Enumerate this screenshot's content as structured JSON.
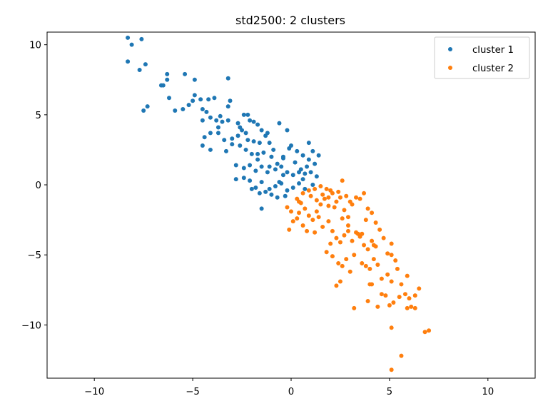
{
  "chart_data": {
    "type": "scatter",
    "title": "std2500: 2 clusters",
    "xlabel": "",
    "ylabel": "",
    "xlim": [
      -12.4,
      12.4
    ],
    "ylim": [
      -13.8,
      10.9
    ],
    "xticks": [
      -10,
      -5,
      0,
      5,
      10
    ],
    "yticks": [
      10,
      5,
      0,
      -5,
      -10
    ],
    "xtick_labels": [
      "−10",
      "−5",
      "0",
      "5",
      "10"
    ],
    "ytick_labels": [
      "10",
      "5",
      "0",
      "−5",
      "−10"
    ],
    "grid": false,
    "legend_position": "top-right",
    "series": [
      {
        "name": "cluster 1",
        "color": "#1f77b4",
        "points": [
          [
            -8.3,
            10.5
          ],
          [
            -8.1,
            10.0
          ],
          [
            -7.6,
            10.4
          ],
          [
            -8.3,
            8.8
          ],
          [
            -7.7,
            8.2
          ],
          [
            -7.4,
            8.6
          ],
          [
            -6.6,
            7.1
          ],
          [
            -6.3,
            7.5
          ],
          [
            -6.3,
            7.9
          ],
          [
            -5.4,
            7.9
          ],
          [
            -4.9,
            7.5
          ],
          [
            -3.2,
            7.6
          ],
          [
            -7.5,
            5.3
          ],
          [
            -7.3,
            5.6
          ],
          [
            -6.5,
            7.1
          ],
          [
            -6.2,
            6.2
          ],
          [
            -5.9,
            5.3
          ],
          [
            -5.5,
            5.4
          ],
          [
            -5.2,
            5.7
          ],
          [
            -5.0,
            6.0
          ],
          [
            -4.9,
            6.4
          ],
          [
            -4.6,
            6.1
          ],
          [
            -4.2,
            6.1
          ],
          [
            -3.9,
            6.2
          ],
          [
            -3.2,
            5.6
          ],
          [
            -3.1,
            6.0
          ],
          [
            -4.5,
            5.4
          ],
          [
            -4.3,
            5.2
          ],
          [
            -4.5,
            4.6
          ],
          [
            -4.1,
            4.8
          ],
          [
            -3.8,
            4.6
          ],
          [
            -3.6,
            4.9
          ],
          [
            -3.5,
            4.5
          ],
          [
            -3.2,
            4.6
          ],
          [
            -2.7,
            4.4
          ],
          [
            -2.4,
            5.0
          ],
          [
            -2.2,
            5.0
          ],
          [
            -1.9,
            4.5
          ],
          [
            -2.6,
            4.1
          ],
          [
            -2.1,
            4.6
          ],
          [
            -1.7,
            4.3
          ],
          [
            -1.5,
            3.9
          ],
          [
            -1.3,
            3.5
          ],
          [
            -1.1,
            3.0
          ],
          [
            -0.6,
            4.4
          ],
          [
            -0.2,
            3.9
          ],
          [
            -4.4,
            3.4
          ],
          [
            -4.1,
            3.7
          ],
          [
            -3.7,
            3.7
          ],
          [
            -3.4,
            3.2
          ],
          [
            -3.0,
            3.3
          ],
          [
            -2.7,
            3.5
          ],
          [
            -2.5,
            3.9
          ],
          [
            -2.2,
            3.2
          ],
          [
            -1.9,
            3.1
          ],
          [
            -1.6,
            3.0
          ],
          [
            -1.2,
            3.7
          ],
          [
            -0.9,
            2.5
          ],
          [
            -0.4,
            2.0
          ],
          [
            -0.1,
            2.6
          ],
          [
            0.0,
            2.8
          ],
          [
            0.6,
            2.1
          ],
          [
            0.9,
            1.8
          ],
          [
            1.1,
            2.4
          ],
          [
            1.4,
            2.1
          ],
          [
            0.9,
            3.0
          ],
          [
            -4.5,
            2.8
          ],
          [
            -4.1,
            2.5
          ],
          [
            -3.3,
            2.4
          ],
          [
            -3.0,
            2.9
          ],
          [
            -2.6,
            2.8
          ],
          [
            -2.3,
            2.5
          ],
          [
            -2.0,
            2.2
          ],
          [
            -1.7,
            1.8
          ],
          [
            -1.4,
            2.3
          ],
          [
            -1.1,
            1.3
          ],
          [
            -0.7,
            1.5
          ],
          [
            -0.4,
            1.9
          ],
          [
            0.2,
            1.6
          ],
          [
            0.5,
            1.1
          ],
          [
            0.8,
            1.3
          ],
          [
            1.2,
            1.5
          ],
          [
            -2.8,
            1.4
          ],
          [
            -2.4,
            1.2
          ],
          [
            -2.1,
            1.4
          ],
          [
            -1.8,
            1.0
          ],
          [
            -1.5,
            1.3
          ],
          [
            -1.2,
            0.9
          ],
          [
            -0.8,
            1.1
          ],
          [
            -0.5,
            1.3
          ],
          [
            -0.2,
            0.9
          ],
          [
            0.1,
            0.7
          ],
          [
            0.4,
            0.9
          ],
          [
            0.7,
            0.8
          ],
          [
            1.0,
            0.9
          ],
          [
            1.3,
            0.6
          ],
          [
            -2.8,
            0.4
          ],
          [
            -2.4,
            0.5
          ],
          [
            -2.1,
            0.3
          ],
          [
            -1.8,
            -0.2
          ],
          [
            -1.5,
            0.2
          ],
          [
            -1.1,
            -0.3
          ],
          [
            -0.8,
            -0.1
          ],
          [
            -0.5,
            0.1
          ],
          [
            -0.2,
            -0.4
          ],
          [
            0.1,
            -0.2
          ],
          [
            0.4,
            0.1
          ],
          [
            0.7,
            -0.3
          ],
          [
            1.1,
            0.0
          ],
          [
            -2.0,
            -0.3
          ],
          [
            -1.6,
            -0.6
          ],
          [
            -1.3,
            -0.5
          ],
          [
            -1.0,
            -0.7
          ],
          [
            -0.7,
            -0.9
          ],
          [
            -0.3,
            -0.8
          ],
          [
            -1.5,
            -1.7
          ],
          [
            -0.4,
            0.7
          ],
          [
            0.3,
            2.4
          ],
          [
            -1.0,
            2.0
          ],
          [
            -3.7,
            4.1
          ],
          [
            -2.3,
            3.7
          ],
          [
            -1.7,
            2.2
          ],
          [
            -0.6,
            0.2
          ],
          [
            0.6,
            0.4
          ]
        ]
      },
      {
        "name": "cluster 2",
        "color": "#ff7f0e",
        "points": [
          [
            -0.2,
            -1.6
          ],
          [
            0.0,
            -1.9
          ],
          [
            0.1,
            -2.6
          ],
          [
            0.3,
            -1.0
          ],
          [
            0.5,
            -1.3
          ],
          [
            0.7,
            -1.7
          ],
          [
            0.9,
            -2.2
          ],
          [
            1.1,
            -2.5
          ],
          [
            1.3,
            -1.9
          ],
          [
            1.5,
            -1.4
          ],
          [
            1.7,
            -1.0
          ],
          [
            1.9,
            -0.9
          ],
          [
            2.1,
            -0.6
          ],
          [
            2.3,
            -1.2
          ],
          [
            2.5,
            -0.9
          ],
          [
            2.7,
            -1.8
          ],
          [
            2.9,
            -2.3
          ],
          [
            3.1,
            -1.4
          ],
          [
            3.3,
            -0.9
          ],
          [
            3.5,
            -1.0
          ],
          [
            3.7,
            -0.6
          ],
          [
            3.9,
            -1.7
          ],
          [
            4.1,
            -2.0
          ],
          [
            4.3,
            -2.7
          ],
          [
            0.6,
            -0.6
          ],
          [
            0.9,
            -0.4
          ],
          [
            1.2,
            -0.3
          ],
          [
            1.5,
            -0.1
          ],
          [
            1.8,
            -0.3
          ],
          [
            2.0,
            -0.4
          ],
          [
            2.4,
            -0.5
          ],
          [
            2.6,
            0.3
          ],
          [
            2.8,
            -0.8
          ],
          [
            3.0,
            -1.2
          ],
          [
            -0.1,
            -3.2
          ],
          [
            0.3,
            -2.4
          ],
          [
            0.6,
            -2.9
          ],
          [
            0.8,
            -3.3
          ],
          [
            1.2,
            -3.4
          ],
          [
            1.6,
            -3.0
          ],
          [
            1.9,
            -2.6
          ],
          [
            2.1,
            -3.3
          ],
          [
            2.3,
            -3.8
          ],
          [
            2.5,
            -4.1
          ],
          [
            2.7,
            -3.6
          ],
          [
            2.9,
            -3.3
          ],
          [
            3.1,
            -4.0
          ],
          [
            3.3,
            -3.4
          ],
          [
            3.5,
            -3.7
          ],
          [
            3.7,
            -4.3
          ],
          [
            3.9,
            -4.6
          ],
          [
            4.1,
            -4.0
          ],
          [
            4.3,
            -4.4
          ],
          [
            4.5,
            -3.2
          ],
          [
            4.7,
            -3.8
          ],
          [
            4.9,
            -4.9
          ],
          [
            5.1,
            -4.2
          ],
          [
            5.3,
            -5.4
          ],
          [
            1.8,
            -4.8
          ],
          [
            2.1,
            -5.1
          ],
          [
            2.4,
            -5.6
          ],
          [
            2.6,
            -5.8
          ],
          [
            2.8,
            -5.3
          ],
          [
            3.0,
            -6.2
          ],
          [
            3.2,
            -5.0
          ],
          [
            3.6,
            -5.6
          ],
          [
            3.8,
            -5.8
          ],
          [
            4.0,
            -6.0
          ],
          [
            4.2,
            -5.3
          ],
          [
            4.4,
            -5.7
          ],
          [
            4.6,
            -6.7
          ],
          [
            4.9,
            -6.4
          ],
          [
            5.1,
            -6.9
          ],
          [
            5.4,
            -6.0
          ],
          [
            5.6,
            -7.1
          ],
          [
            5.9,
            -6.5
          ],
          [
            2.3,
            -7.2
          ],
          [
            2.5,
            -6.9
          ],
          [
            3.2,
            -8.8
          ],
          [
            3.9,
            -8.3
          ],
          [
            4.1,
            -7.1
          ],
          [
            4.4,
            -8.7
          ],
          [
            4.6,
            -7.8
          ],
          [
            4.8,
            -7.9
          ],
          [
            5.0,
            -8.6
          ],
          [
            5.2,
            -8.4
          ],
          [
            5.5,
            -8.0
          ],
          [
            5.8,
            -7.8
          ],
          [
            6.0,
            -8.1
          ],
          [
            6.3,
            -7.9
          ],
          [
            6.5,
            -7.4
          ],
          [
            5.9,
            -8.8
          ],
          [
            6.1,
            -8.7
          ],
          [
            6.3,
            -8.8
          ],
          [
            5.1,
            -10.2
          ],
          [
            6.8,
            -10.5
          ],
          [
            7.0,
            -10.4
          ],
          [
            5.6,
            -12.2
          ],
          [
            5.1,
            -13.2
          ],
          [
            4.0,
            -7.1
          ],
          [
            3.4,
            -3.5
          ],
          [
            2.2,
            -1.6
          ],
          [
            1.4,
            -2.3
          ],
          [
            0.4,
            -1.2
          ],
          [
            1.0,
            -0.8
          ],
          [
            1.6,
            -0.7
          ],
          [
            2.9,
            -2.9
          ],
          [
            3.6,
            -3.5
          ],
          [
            4.2,
            -4.3
          ],
          [
            5.1,
            -5.0
          ],
          [
            2.0,
            -4.2
          ],
          [
            1.3,
            -1.1
          ],
          [
            2.6,
            -2.4
          ],
          [
            3.8,
            -2.5
          ],
          [
            0.4,
            -2.0
          ],
          [
            1.9,
            -1.5
          ]
        ]
      }
    ]
  }
}
